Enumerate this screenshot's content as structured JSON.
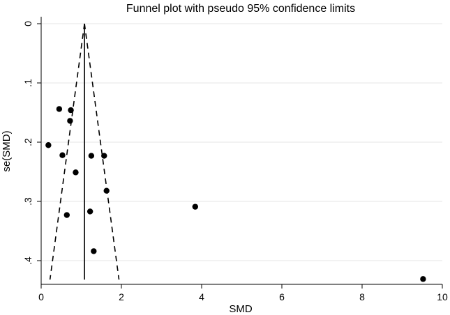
{
  "chart_data": {
    "type": "scatter",
    "title": "Funnel plot with pseudo 95% confidence limits",
    "xlabel": "SMD",
    "ylabel": "se(SMD)",
    "xlim": [
      0,
      10
    ],
    "ylim": [
      0,
      0.44
    ],
    "y_axis_inverted": true,
    "grid": true,
    "x_ticks": [
      0,
      2,
      4,
      6,
      8,
      10
    ],
    "x_tick_labels": [
      "0",
      "2",
      "4",
      "6",
      "8",
      "10"
    ],
    "y_ticks": [
      0,
      0.1,
      0.2,
      0.3,
      0.4
    ],
    "y_tick_labels": [
      "0",
      ".1",
      ".2",
      ".3",
      ".4"
    ],
    "pooled_estimate": 1.08,
    "ci_limits": {
      "apex": [
        1.08,
        0
      ],
      "lower_end": [
        0.22,
        0.432
      ],
      "upper_end": [
        1.94,
        0.432
      ]
    },
    "points": [
      {
        "x": 0.45,
        "y": 0.144
      },
      {
        "x": 0.74,
        "y": 0.146
      },
      {
        "x": 0.72,
        "y": 0.164
      },
      {
        "x": 0.18,
        "y": 0.205
      },
      {
        "x": 0.53,
        "y": 0.222
      },
      {
        "x": 1.25,
        "y": 0.223
      },
      {
        "x": 1.57,
        "y": 0.223
      },
      {
        "x": 0.86,
        "y": 0.251
      },
      {
        "x": 1.63,
        "y": 0.282
      },
      {
        "x": 3.84,
        "y": 0.309
      },
      {
        "x": 1.22,
        "y": 0.317
      },
      {
        "x": 0.64,
        "y": 0.323
      },
      {
        "x": 1.31,
        "y": 0.384
      },
      {
        "x": 9.52,
        "y": 0.431
      }
    ],
    "colors": {
      "background": "#ffffff",
      "marker": "#000000",
      "grid": "#e4e4e4",
      "lines": "#000000"
    }
  }
}
